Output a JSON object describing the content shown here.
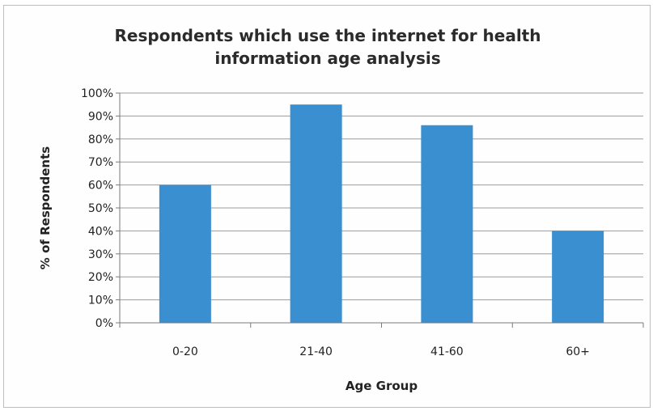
{
  "chart_data": {
    "type": "bar",
    "title_lines": [
      "Respondents which use the internet for health",
      "information age analysis"
    ],
    "categories": [
      "0-20",
      "21-40",
      "41-60",
      "60+"
    ],
    "values": [
      60,
      95,
      86,
      40
    ],
    "xlabel": "Age Group",
    "ylabel": "% of Respondents",
    "ylim": [
      0,
      100
    ],
    "ytick_step": 10,
    "ytick_suffix": "%",
    "grid": true,
    "legend": "none",
    "bar_color": "#3a8fd0"
  }
}
